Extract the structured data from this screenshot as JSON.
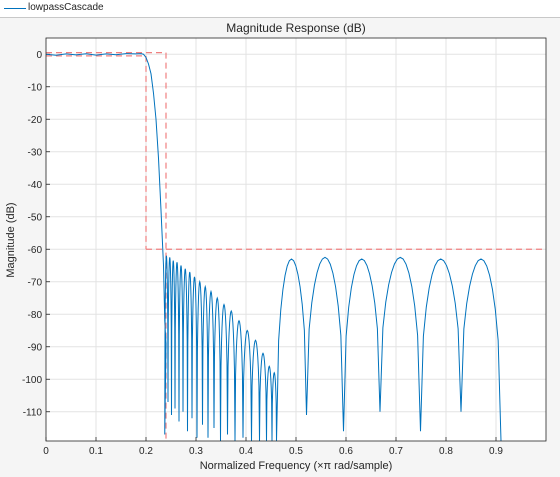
{
  "legend": {
    "label": "lowpassCascade",
    "color": "#0072bd"
  },
  "chart_data": {
    "type": "line",
    "title": "Magnitude Response (dB)",
    "xlabel": "Normalized Frequency (×π rad/sample)",
    "ylabel": "Magnitude (dB)",
    "xlim": [
      0,
      1
    ],
    "ylim": [
      -119,
      5
    ],
    "xticks": [
      0,
      0.1,
      0.2,
      0.3,
      0.4,
      0.5,
      0.6,
      0.7,
      0.8,
      0.9
    ],
    "xtick_labels": [
      "0",
      "0.1",
      "0.2",
      "0.3",
      "0.4",
      "0.5",
      "0.6",
      "0.7",
      "0.8",
      "0.9"
    ],
    "yticks": [
      0,
      -10,
      -20,
      -30,
      -40,
      -50,
      -60,
      -70,
      -80,
      -90,
      -100,
      -110
    ],
    "ytick_labels": [
      "0",
      "-10",
      "-20",
      "-30",
      "-40",
      "-50",
      "-60",
      "-70",
      "-80",
      "-90",
      "-100",
      "-110"
    ],
    "grid": true,
    "series": [
      {
        "name": "lowpassCascade",
        "color": "#0072bd",
        "x": [
          0,
          0.02,
          0.04,
          0.06,
          0.08,
          0.1,
          0.12,
          0.14,
          0.16,
          0.18,
          0.19,
          0.195,
          0.2,
          0.205,
          0.21,
          0.215,
          0.22,
          0.225,
          0.23,
          0.235,
          0.2375,
          0.24
        ],
        "y": [
          0,
          -0.3,
          0.1,
          -0.2,
          0.15,
          -0.25,
          0.1,
          -0.15,
          0.2,
          0.1,
          0.2,
          0,
          -1,
          -3,
          -6,
          -12,
          -20,
          -32,
          -48,
          -65,
          -82,
          -89
        ]
      }
    ],
    "stopband_lobes": {
      "edges": [
        0.2375,
        0.244,
        0.251,
        0.258,
        0.266,
        0.274,
        0.283,
        0.292,
        0.302,
        0.313,
        0.324,
        0.336,
        0.349,
        0.363,
        0.378,
        0.394,
        0.411,
        0.427,
        0.441,
        0.452,
        0.461,
        0.521,
        0.595,
        0.668,
        0.749,
        0.83,
        0.91
      ],
      "peaks": [
        -62,
        -62.5,
        -63.5,
        -64,
        -65,
        -66,
        -67,
        -68.5,
        -70,
        -71.5,
        -73,
        -75,
        -77,
        -79,
        -82,
        -85,
        -88,
        -92,
        -96,
        -98,
        -63,
        -62.5,
        -63,
        -62.5,
        -63,
        -63
      ],
      "nulls": [
        -117,
        -107,
        -111,
        -109,
        -113,
        -110,
        -116,
        -112,
        -118,
        -114,
        -118,
        -115,
        -119,
        -117,
        -119,
        -118,
        -119,
        -119,
        -119,
        -119,
        -119,
        -111,
        -116,
        -110,
        -116,
        -110,
        -119
      ]
    },
    "specification": {
      "color": "#f08080",
      "segments": [
        {
          "x": [
            0,
            0.2
          ],
          "y": [
            0.5,
            0.5
          ]
        },
        {
          "x": [
            0,
            0.2
          ],
          "y": [
            -0.5,
            -0.5
          ]
        },
        {
          "x": [
            0.2,
            0.2
          ],
          "y": [
            -0.5,
            -60
          ]
        },
        {
          "x": [
            0.2,
            1
          ],
          "y": [
            -60,
            -60
          ]
        },
        {
          "x": [
            0.2,
            0.24
          ],
          "y": [
            0.5,
            0.5
          ]
        },
        {
          "x": [
            0.24,
            0.24
          ],
          "y": [
            0.5,
            -119
          ]
        }
      ]
    }
  }
}
